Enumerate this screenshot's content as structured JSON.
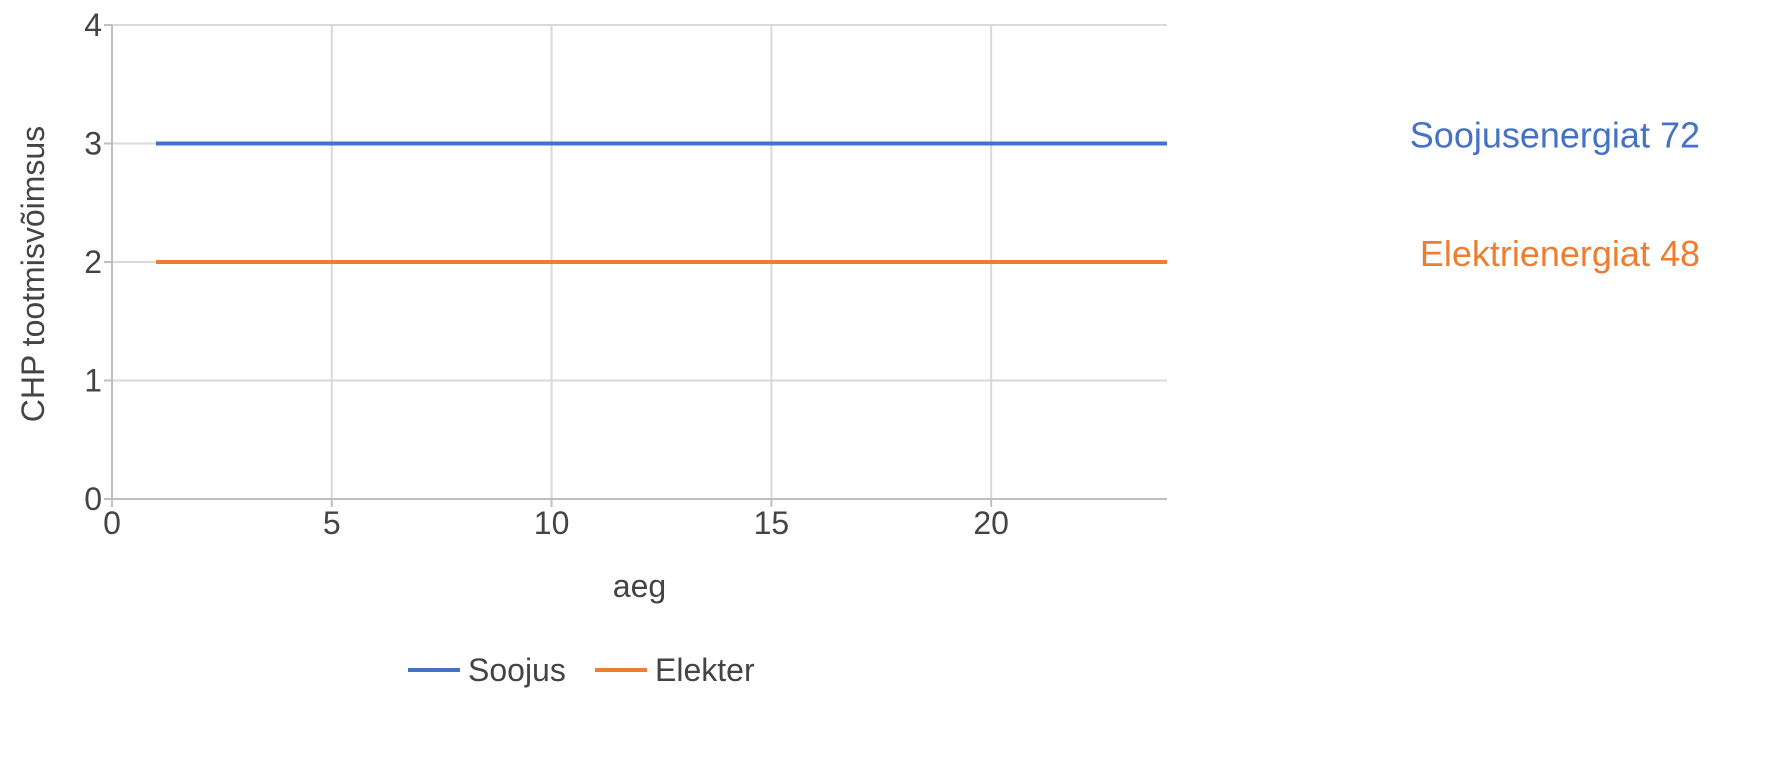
{
  "chart_data": {
    "type": "line",
    "title": "",
    "xlabel": "aeg",
    "ylabel": "CHP tootmisvõimsus",
    "xlim": [
      0,
      24
    ],
    "ylim": [
      0,
      4
    ],
    "x_ticks": [
      0,
      5,
      10,
      15,
      20
    ],
    "y_ticks": [
      0,
      1,
      2,
      3,
      4
    ],
    "grid": true,
    "legend_position": "bottom",
    "series": [
      {
        "name": "Soojus",
        "color": "#4472C4",
        "x": [
          1,
          24
        ],
        "y": [
          3,
          3
        ]
      },
      {
        "name": "Elekter",
        "color": "#ED7D31",
        "x": [
          1,
          24
        ],
        "y": [
          2,
          2
        ]
      }
    ],
    "annotations": [
      {
        "text": "Soojusenergiat 72",
        "color": "#4472C4",
        "y": 3
      },
      {
        "text": "Elektrienergiat 48",
        "color": "#ED7D31",
        "y": 2
      }
    ]
  }
}
